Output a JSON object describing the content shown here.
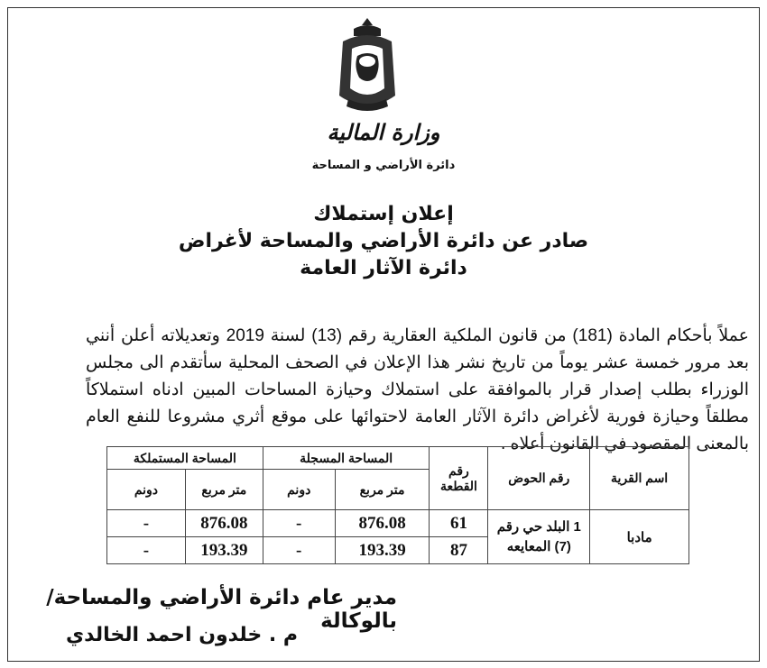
{
  "header": {
    "ministry": "وزارة المالية",
    "department": "دائرة الأراضي و المساحة"
  },
  "titles": [
    "إعلان إستملاك",
    "صادر عن دائرة الأراضي والمساحة لأغراض",
    "دائرة الآثار العامة"
  ],
  "body_text": "عملاً بأحكام المادة (181) من قانون الملكية العقارية رقم (13) لسنة 2019 وتعديلاته أعلن أنني بعد مرور خمسة عشر يوماً من تاريخ نشر هذا الإعلان في الصحف المحلية سأتقدم الى مجلس الوزراء بطلب إصدار قرار بالموافقة على استملاك وحيازة المساحات المبين ادناه استملاكاً مطلقاً وحيازة فورية لأغراض دائرة الآثار العامة لاحتوائها على موقع أثري مشروعا للنفع العام بالمعنى المقصود في القانون أعلاه .",
  "table": {
    "headers": {
      "village": "اسم القرية",
      "basin": "رقم الحوض",
      "parcel": "رقم القطعة",
      "registered_area": "المساحة المسجلة",
      "expropriated_area": "المساحة المستملكة",
      "sqm": "متر مربع",
      "dunum": "دونم"
    },
    "village": "مادبا",
    "basin": "1 البلد حي رقم (7) المعايعه",
    "rows": [
      {
        "parcel": "61",
        "reg_sqm": "876.08",
        "reg_dunum": "-",
        "exp_sqm": "876.08",
        "exp_dunum": "-"
      },
      {
        "parcel": "87",
        "reg_sqm": "193.39",
        "reg_dunum": "-",
        "exp_sqm": "193.39",
        "exp_dunum": "-"
      }
    ]
  },
  "signature": {
    "title": "مدير عام دائرة الأراضي والمساحة/بالوكالة",
    "name": "م . خلدون احمد الخالدي"
  }
}
